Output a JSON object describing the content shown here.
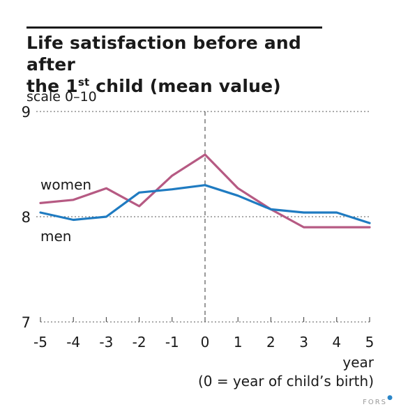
{
  "chart_data": {
    "type": "line",
    "title_line1": "Life satisfaction before and after",
    "title_line2_pre": "the 1",
    "title_line2_sup": "st",
    "title_line2_post": " child (mean value)",
    "ylabel": "scale 0–10",
    "xlabel": "year",
    "xlabel_note": "(0 = year of child’s birth)",
    "ylim": [
      7,
      9
    ],
    "yticks": [
      "7",
      "8",
      "9"
    ],
    "categories": [
      "-5",
      "-4",
      "-3",
      "-2",
      "-1",
      "0",
      "1",
      "2",
      "3",
      "4",
      "5"
    ],
    "series": [
      {
        "name": "women",
        "color": "#b65a83",
        "values": [
          8.13,
          8.16,
          8.27,
          8.1,
          8.39,
          8.59,
          8.27,
          8.07,
          7.9,
          7.9,
          7.9
        ]
      },
      {
        "name": "men",
        "color": "#1f7bc1",
        "values": [
          8.04,
          7.97,
          8.0,
          8.23,
          8.26,
          8.3,
          8.2,
          8.07,
          8.04,
          8.04,
          7.94
        ]
      }
    ],
    "grid": "dotted at 8 and 9",
    "marker_line": "dashed vertical at 0"
  },
  "footer": {
    "brand": "FORS",
    "brand_dot": "●"
  }
}
